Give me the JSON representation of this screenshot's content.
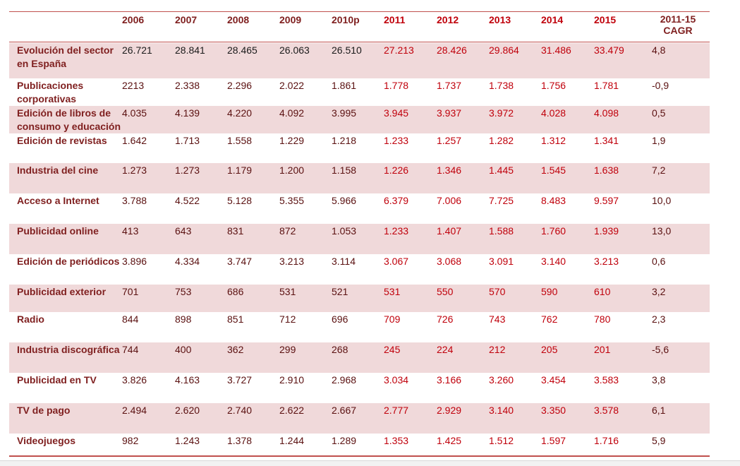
{
  "columns": [
    "",
    "2006",
    "2007",
    "2008",
    "2009",
    "2010p",
    "2011",
    "2012",
    "2013",
    "2014",
    "2015",
    "2011-15 CAGR"
  ],
  "cagr_header": {
    "line1": "2011-15",
    "line2": "CAGR"
  },
  "rows": [
    {
      "label_lines": [
        "Evolución del sector",
        "en España"
      ],
      "values": [
        "26.721",
        "28.841",
        "28.465",
        "26.063",
        "26.510",
        "27.213",
        "28.426",
        "29.864",
        "31.486",
        "33.479"
      ],
      "cagr": "4,8"
    },
    {
      "label_lines": [
        "Publicaciones",
        "corporativas"
      ],
      "values": [
        "2213",
        "2.338",
        "2.296",
        "2.022",
        "1.861",
        "1.778",
        "1.737",
        "1.738",
        "1.756",
        "1.781"
      ],
      "cagr": "-0,9"
    },
    {
      "label_lines": [
        "Edición de libros de",
        "consumo y educación"
      ],
      "values": [
        "4.035",
        "4.139",
        "4.220",
        "4.092",
        "3.995",
        "3.945",
        "3.937",
        "3.972",
        "4.028",
        "4.098"
      ],
      "cagr": "0,5"
    },
    {
      "label_lines": [
        "Edición de revistas"
      ],
      "values": [
        "1.642",
        "1.713",
        "1.558",
        "1.229",
        "1.218",
        "1.233",
        "1.257",
        "1.282",
        "1.312",
        "1.341"
      ],
      "cagr": "1,9"
    },
    {
      "label_lines": [
        "Industria del cine"
      ],
      "values": [
        "1.273",
        "1.273",
        "1.179",
        "1.200",
        "1.158",
        "1.226",
        "1.346",
        "1.445",
        "1.545",
        "1.638"
      ],
      "cagr": "7,2"
    },
    {
      "label_lines": [
        "Acceso a Internet"
      ],
      "values": [
        "3.788",
        "4.522",
        "5.128",
        "5.355",
        "5.966",
        "6.379",
        "7.006",
        "7.725",
        "8.483",
        "9.597"
      ],
      "cagr": "10,0"
    },
    {
      "label_lines": [
        "Publicidad online"
      ],
      "values": [
        "413",
        "643",
        "831",
        "872",
        "1.053",
        "1.233",
        "1.407",
        "1.588",
        "1.760",
        "1.939"
      ],
      "cagr": "13,0"
    },
    {
      "label_lines": [
        "Edición de periódicos"
      ],
      "values": [
        "3.896",
        "4.334",
        "3.747",
        "3.213",
        "3.114",
        "3.067",
        "3.068",
        "3.091",
        "3.140",
        "3.213"
      ],
      "cagr": "0,6"
    },
    {
      "label_lines": [
        "Publicidad exterior"
      ],
      "values": [
        "701",
        "753",
        "686",
        "531",
        "521",
        "531",
        "550",
        "570",
        "590",
        "610"
      ],
      "cagr": "3,2"
    },
    {
      "label_lines": [
        "Radio"
      ],
      "values": [
        "844",
        "898",
        "851",
        "712",
        "696",
        "709",
        "726",
        "743",
        "762",
        "780"
      ],
      "cagr": "2,3"
    },
    {
      "label_lines": [
        "Industria discográfica"
      ],
      "values": [
        "744",
        "400",
        "362",
        "299",
        "268",
        "245",
        "224",
        "212",
        "205",
        "201"
      ],
      "cagr": "-5,6"
    },
    {
      "label_lines": [
        "Publicidad en TV"
      ],
      "values": [
        "3.826",
        "4.163",
        "3.727",
        "2.910",
        "2.968",
        "3.034",
        "3.166",
        "3.260",
        "3.454",
        "3.583"
      ],
      "cagr": "3,8"
    },
    {
      "label_lines": [
        "TV de pago"
      ],
      "values": [
        "2.494",
        "2.620",
        "2.740",
        "2.622",
        "2.667",
        "2.777",
        "2.929",
        "3.140",
        "3.350",
        "3.578"
      ],
      "cagr": "6,1"
    },
    {
      "label_lines": [
        "Videojuegos"
      ],
      "values": [
        "982",
        "1.243",
        "1.378",
        "1.244",
        "1.289",
        "1.353",
        "1.425",
        "1.512",
        "1.597",
        "1.716"
      ],
      "cagr": "5,9"
    }
  ],
  "colors": {
    "rule": "#c0504d",
    "shade": "#f0d9da",
    "label_text": "#7f1f1f",
    "projection_text": "#c0000b"
  }
}
